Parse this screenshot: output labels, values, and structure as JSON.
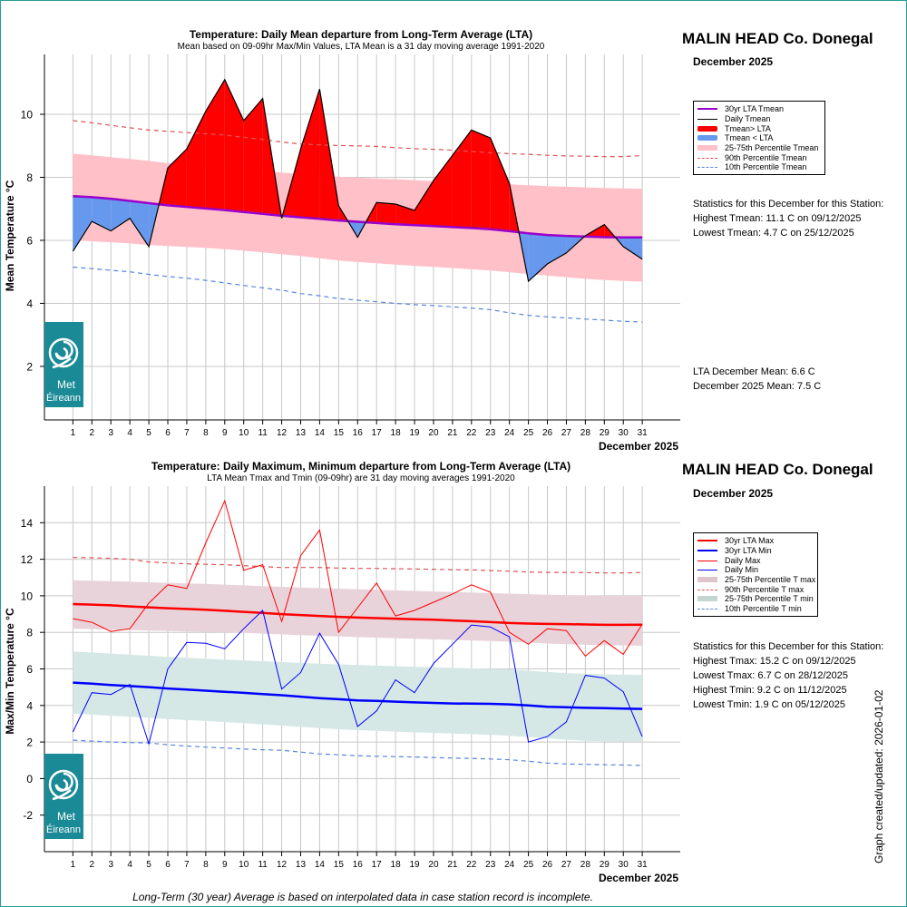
{
  "station": "MALIN HEAD Co. Donegal",
  "period": "December 2025",
  "updated_label": "Graph created/updated:  2026-01-02",
  "footnote": "Long-Term (30 year) Average is based on interpolated data in case station record is incomplete.",
  "logo_text": [
    "Met",
    "Éireann"
  ],
  "colors": {
    "hot": "#ff0000",
    "cold": "#6699ee",
    "band_mean": "#ffc0c8",
    "lta_mean": "#9900cc",
    "tmax": "#ff0000",
    "tmin": "#0000ff",
    "band_max": "#e8d3da",
    "band_min": "#d5e8e6",
    "p_red": "#dd5555",
    "p_blue": "#5588dd",
    "frame": "#2a9d9d"
  },
  "top_chart": {
    "title": "Temperature: Daily Mean departure from Long-Term Average (LTA)",
    "subtitle": "Mean based on 09-09hr Max/Min Values, LTA Mean is a 31 day moving average 1991-2020",
    "legend": [
      "30yr LTA Tmean",
      "Daily Tmean",
      "Tmean> LTA",
      "Tmean < LTA",
      "25-75th Percentile Tmean",
      "90th Percentile Tmean",
      "10th Percentile Tmean"
    ],
    "stats_heading": "Statistics for this December for this Station:",
    "stats": [
      "Highest Tmean: 11.1 C on 09/12/2025",
      "Lowest Tmean: 4.7 C on 25/12/2025"
    ],
    "means": [
      "LTA December Mean: 6.6 C",
      "December 2025 Mean: 7.5 C"
    ]
  },
  "bottom_chart": {
    "title": "Temperature: Daily Maximum, Minimum departure from Long-Term Average (LTA)",
    "subtitle": "LTA Mean Tmax and Tmin (09-09hr) are 31 day moving averages 1991-2020",
    "legend": [
      "30yr LTA Max",
      "30yr LTA Min",
      "Daily Max",
      "Daily Min",
      "25-75th Percentile T max",
      "90th Percentile T max",
      "25-75th Percentile T min",
      "10th Percentile T min"
    ],
    "stats_heading": "Statistics for this December for this Station:",
    "stats": [
      "Highest Tmax: 15.2 C on 09/12/2025",
      "Lowest Tmax: 6.7 C on 28/12/2025",
      "Highest Tmin: 9.2 C on 11/12/2025",
      "Lowest Tmin: 1.9 C on 05/12/2025"
    ]
  },
  "chart_data": [
    {
      "type": "line",
      "title": "Temperature: Daily Mean departure from Long-Term Average (LTA)",
      "xlabel": "December 2025",
      "ylabel": "Mean Temperature °C",
      "x": [
        1,
        2,
        3,
        4,
        5,
        6,
        7,
        8,
        9,
        10,
        11,
        12,
        13,
        14,
        15,
        16,
        17,
        18,
        19,
        20,
        21,
        22,
        23,
        24,
        25,
        26,
        27,
        28,
        29,
        30,
        31
      ],
      "xlim": [
        -0.5,
        33
      ],
      "ylim": [
        0.3,
        11.9
      ],
      "yticks": [
        2,
        4,
        6,
        8,
        10
      ],
      "grid": true,
      "series": [
        {
          "name": "30yr LTA Tmean",
          "values": [
            7.4,
            7.37,
            7.32,
            7.25,
            7.18,
            7.11,
            7.06,
            7.01,
            6.96,
            6.9,
            6.84,
            6.78,
            6.73,
            6.68,
            6.63,
            6.59,
            6.55,
            6.51,
            6.48,
            6.45,
            6.42,
            6.39,
            6.35,
            6.29,
            6.22,
            6.17,
            6.14,
            6.12,
            6.1,
            6.09,
            6.09
          ]
        },
        {
          "name": "Daily Tmean",
          "values": [
            5.65,
            6.6,
            6.3,
            6.7,
            5.8,
            8.3,
            8.9,
            10.1,
            11.1,
            9.8,
            10.5,
            6.7,
            8.9,
            10.8,
            7.1,
            6.1,
            7.2,
            7.15,
            6.95,
            7.9,
            8.7,
            9.5,
            9.25,
            7.8,
            4.7,
            5.25,
            5.6,
            6.15,
            6.5,
            5.8,
            5.4
          ]
        },
        {
          "name": "25th Percentile Tmean",
          "values": [
            6.0,
            5.97,
            5.94,
            5.9,
            5.85,
            5.82,
            5.79,
            5.76,
            5.72,
            5.67,
            5.62,
            5.56,
            5.5,
            5.43,
            5.36,
            5.31,
            5.27,
            5.23,
            5.19,
            5.16,
            5.12,
            5.08,
            5.04,
            4.99,
            4.93,
            4.88,
            4.83,
            4.78,
            4.74,
            4.71,
            4.69
          ]
        },
        {
          "name": "75th Percentile Tmean",
          "values": [
            8.75,
            8.7,
            8.64,
            8.58,
            8.52,
            8.45,
            8.4,
            8.36,
            8.32,
            8.26,
            8.2,
            8.15,
            8.1,
            8.05,
            8.02,
            7.99,
            7.96,
            7.94,
            7.91,
            7.88,
            7.86,
            7.83,
            7.81,
            7.78,
            7.75,
            7.72,
            7.7,
            7.68,
            7.66,
            7.65,
            7.64
          ]
        },
        {
          "name": "90th Percentile Tmean",
          "values": [
            9.8,
            9.73,
            9.65,
            9.57,
            9.5,
            9.46,
            9.42,
            9.38,
            9.34,
            9.27,
            9.2,
            9.12,
            9.06,
            9.03,
            9.01,
            9.0,
            8.98,
            8.94,
            8.91,
            8.89,
            8.86,
            8.82,
            8.78,
            8.75,
            8.73,
            8.7,
            8.68,
            8.67,
            8.66,
            8.66,
            8.69
          ]
        },
        {
          "name": "10th Percentile Tmean",
          "values": [
            5.15,
            5.1,
            5.05,
            5.0,
            4.92,
            4.85,
            4.8,
            4.73,
            4.65,
            4.57,
            4.49,
            4.42,
            4.31,
            4.24,
            4.15,
            4.1,
            4.05,
            4.0,
            3.96,
            3.93,
            3.89,
            3.85,
            3.8,
            3.7,
            3.62,
            3.57,
            3.54,
            3.5,
            3.47,
            3.43,
            3.41
          ]
        }
      ]
    },
    {
      "type": "line",
      "title": "Temperature: Daily Maximum, Minimum departure from Long-Term Average (LTA)",
      "xlabel": "December 2025",
      "ylabel": "Max/Min Temperature °C",
      "x": [
        1,
        2,
        3,
        4,
        5,
        6,
        7,
        8,
        9,
        10,
        11,
        12,
        13,
        14,
        15,
        16,
        17,
        18,
        19,
        20,
        21,
        22,
        23,
        24,
        25,
        26,
        27,
        28,
        29,
        30,
        31
      ],
      "xlim": [
        -0.5,
        33
      ],
      "ylim": [
        -4,
        16
      ],
      "yticks": [
        -2,
        0,
        2,
        4,
        6,
        8,
        10,
        12,
        14
      ],
      "grid": true,
      "series": [
        {
          "name": "30yr LTA Max",
          "values": [
            9.55,
            9.52,
            9.48,
            9.42,
            9.37,
            9.32,
            9.28,
            9.24,
            9.18,
            9.12,
            9.06,
            9.0,
            8.95,
            8.9,
            8.85,
            8.81,
            8.78,
            8.75,
            8.72,
            8.69,
            8.65,
            8.61,
            8.56,
            8.51,
            8.48,
            8.46,
            8.45,
            8.43,
            8.41,
            8.41,
            8.42
          ]
        },
        {
          "name": "30yr LTA Min",
          "values": [
            5.25,
            5.19,
            5.12,
            5.06,
            5.0,
            4.93,
            4.87,
            4.81,
            4.75,
            4.69,
            4.62,
            4.56,
            4.48,
            4.4,
            4.34,
            4.28,
            4.25,
            4.21,
            4.17,
            4.14,
            4.11,
            4.1,
            4.09,
            4.06,
            4.0,
            3.93,
            3.9,
            3.87,
            3.85,
            3.83,
            3.81
          ]
        },
        {
          "name": "Daily Max",
          "values": [
            8.75,
            8.55,
            8.05,
            8.2,
            9.6,
            10.6,
            10.4,
            12.9,
            15.2,
            11.4,
            11.7,
            8.6,
            12.2,
            13.6,
            8.0,
            9.35,
            10.7,
            8.9,
            9.2,
            9.65,
            10.1,
            10.6,
            10.2,
            8.0,
            7.35,
            8.2,
            8.1,
            6.7,
            7.55,
            6.8,
            8.45
          ]
        },
        {
          "name": "Daily Min",
          "values": [
            2.55,
            4.7,
            4.6,
            5.15,
            1.9,
            6.0,
            7.45,
            7.4,
            7.1,
            8.2,
            9.2,
            4.9,
            5.8,
            7.95,
            6.25,
            2.85,
            3.7,
            5.4,
            4.7,
            6.3,
            7.35,
            8.4,
            8.3,
            7.75,
            2.0,
            2.3,
            3.1,
            5.65,
            5.5,
            4.75,
            2.3
          ]
        },
        {
          "name": "25th Percentile T max",
          "values": [
            8.2,
            8.18,
            8.15,
            8.13,
            8.1,
            8.08,
            8.05,
            8.03,
            8.0,
            7.97,
            7.93,
            7.89,
            7.85,
            7.81,
            7.77,
            7.74,
            7.71,
            7.68,
            7.65,
            7.62,
            7.59,
            7.56,
            7.53,
            7.49,
            7.44,
            7.39,
            7.35,
            7.32,
            7.3,
            7.28,
            7.27
          ]
        },
        {
          "name": "75th Percentile T max",
          "values": [
            10.85,
            10.83,
            10.8,
            10.77,
            10.74,
            10.71,
            10.68,
            10.65,
            10.61,
            10.57,
            10.53,
            10.49,
            10.45,
            10.42,
            10.39,
            10.36,
            10.33,
            10.3,
            10.27,
            10.24,
            10.21,
            10.18,
            10.15,
            10.12,
            10.09,
            10.06,
            10.04,
            10.02,
            10.01,
            10.0,
            10.0
          ]
        },
        {
          "name": "90th Percentile T max",
          "values": [
            12.1,
            12.08,
            12.05,
            12.0,
            11.85,
            11.8,
            11.75,
            11.72,
            11.7,
            11.65,
            11.6,
            11.55,
            11.55,
            11.55,
            11.52,
            11.5,
            11.5,
            11.48,
            11.47,
            11.45,
            11.43,
            11.42,
            11.38,
            11.35,
            11.3,
            11.28,
            11.28,
            11.27,
            11.25,
            11.25,
            11.28
          ]
        },
        {
          "name": "25th Percentile T min",
          "values": [
            3.55,
            3.5,
            3.44,
            3.38,
            3.32,
            3.25,
            3.2,
            3.15,
            3.09,
            3.03,
            2.97,
            2.9,
            2.83,
            2.76,
            2.7,
            2.65,
            2.61,
            2.57,
            2.53,
            2.5,
            2.46,
            2.43,
            2.39,
            2.34,
            2.27,
            2.2,
            2.13,
            2.07,
            2.04,
            2.03,
            2.02
          ]
        },
        {
          "name": "75th Percentile T min",
          "values": [
            6.95,
            6.9,
            6.84,
            6.78,
            6.72,
            6.66,
            6.61,
            6.56,
            6.51,
            6.47,
            6.42,
            6.37,
            6.33,
            6.29,
            6.25,
            6.22,
            6.18,
            6.15,
            6.12,
            6.09,
            6.06,
            6.03,
            6.0,
            5.97,
            5.9,
            5.83,
            5.77,
            5.73,
            5.7,
            5.68,
            5.67
          ]
        },
        {
          "name": "10th Percentile T min",
          "values": [
            2.1,
            2.05,
            2.0,
            1.97,
            1.95,
            1.85,
            1.78,
            1.72,
            1.67,
            1.62,
            1.58,
            1.55,
            1.45,
            1.35,
            1.3,
            1.25,
            1.22,
            1.2,
            1.18,
            1.15,
            1.12,
            1.1,
            1.07,
            1.03,
            0.95,
            0.85,
            0.8,
            0.78,
            0.76,
            0.74,
            0.72
          ]
        }
      ]
    }
  ]
}
